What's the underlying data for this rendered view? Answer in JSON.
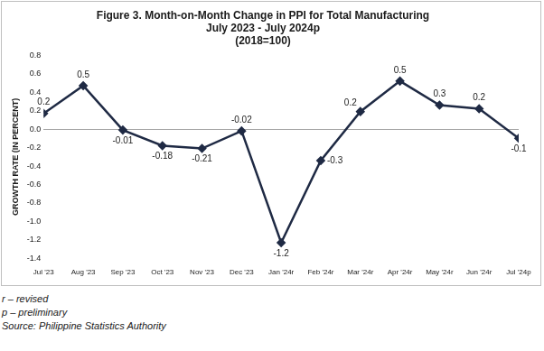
{
  "chart_data": {
    "type": "line",
    "title": [
      "Figure 3. Month-on-Month Change in PPI for Total Manufacturing",
      "July 2023 - July 2024p",
      "(2018=100)"
    ],
    "y_label": "GROWTH RATE (IN PERCENT)",
    "categories": [
      "Jul '23",
      "Aug '23",
      "Sep '23",
      "Oct '23",
      "Nov '23",
      "Dec '23",
      "Jan '24r",
      "Feb '24r",
      "Mar '24r",
      "Apr '24r",
      "May '24r",
      "Jun '24r",
      "Jul '24p"
    ],
    "values": [
      0.17,
      0.47,
      -0.01,
      -0.18,
      -0.21,
      -0.02,
      -1.23,
      -0.34,
      0.19,
      0.52,
      0.26,
      0.22,
      -0.1
    ],
    "value_labels": [
      "0.2",
      "0.5",
      "-0.01",
      "-0.18",
      "-0.21",
      "-0.02",
      "-1.2",
      "-0.3",
      "0.2",
      "0.5",
      "0.3",
      "0.2",
      "-0.1"
    ],
    "data_labels": true,
    "color": "#1f2a44",
    "marker": "diamond",
    "line_style": "solid",
    "grid": false,
    "ylim": [
      -1.4,
      0.8
    ],
    "yticks": [
      {
        "value": -1.4,
        "label": "-1.4"
      },
      -1.2,
      {
        "value": -1,
        "label": "-1.0"
      },
      -0.8,
      -0.6,
      -0.4,
      -0.2,
      {
        "value": 0,
        "label": "0.0"
      },
      0.2,
      0.4,
      0.6,
      0.8
    ],
    "notes": [
      "r – revised",
      "p – preliminary",
      "Source: Philippine Statistics Authority"
    ]
  }
}
